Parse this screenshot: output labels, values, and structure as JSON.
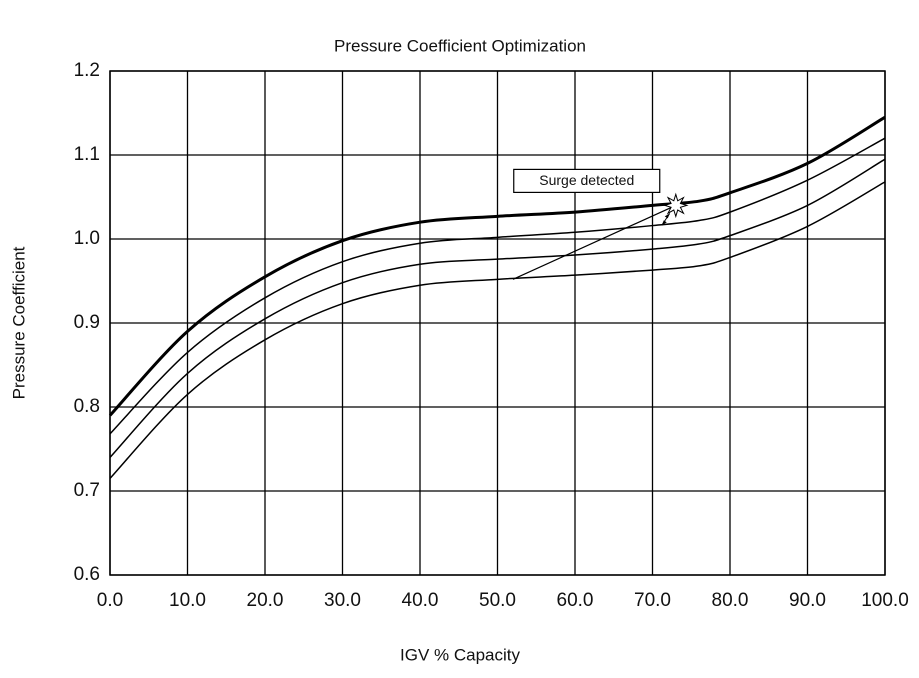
{
  "chart_data": {
    "type": "line",
    "title": "Pressure Coefficient Optimization",
    "xlabel": "IGV % Capacity",
    "ylabel": "Pressure Coefficient",
    "xlim": [
      0,
      100
    ],
    "ylim": [
      0.6,
      1.2
    ],
    "xticks": [
      {
        "value": 0,
        "label": "0.0"
      },
      {
        "value": 10,
        "label": "10.0"
      },
      {
        "value": 20,
        "label": "20.0"
      },
      {
        "value": 30,
        "label": "30.0"
      },
      {
        "value": 40,
        "label": "40.0"
      },
      {
        "value": 50,
        "label": "50.0"
      },
      {
        "value": 60,
        "label": "60.0"
      },
      {
        "value": 70,
        "label": "70.0"
      },
      {
        "value": 80,
        "label": "80.0"
      },
      {
        "value": 90,
        "label": "90.0"
      },
      {
        "value": 100,
        "label": "100.0"
      }
    ],
    "yticks": [
      0.6,
      0.7,
      0.8,
      0.9,
      {
        "value": 1,
        "label": "1.0"
      },
      1.1,
      1.2
    ],
    "grid": true,
    "series": [
      {
        "color": "#000000",
        "line_width": 3,
        "x": [
          0,
          10,
          20,
          30,
          40,
          50,
          60,
          70,
          76,
          80,
          90,
          100
        ],
        "values": [
          0.79,
          0.89,
          0.955,
          0.998,
          1.02,
          1.027,
          1.032,
          1.04,
          1.045,
          1.055,
          1.09,
          1.145
        ]
      },
      {
        "color": "#000000",
        "line_width": 1.5,
        "x": [
          0,
          10,
          20,
          30,
          40,
          50,
          60,
          70,
          76,
          80,
          90,
          100
        ],
        "values": [
          0.768,
          0.865,
          0.93,
          0.973,
          0.995,
          1.002,
          1.008,
          1.016,
          1.022,
          1.032,
          1.07,
          1.12
        ]
      },
      {
        "color": "#000000",
        "line_width": 1.5,
        "x": [
          0,
          10,
          20,
          30,
          40,
          50,
          60,
          70,
          76,
          80,
          90,
          100
        ],
        "values": [
          0.74,
          0.84,
          0.905,
          0.948,
          0.97,
          0.976,
          0.981,
          0.988,
          0.994,
          1.004,
          1.04,
          1.095
        ]
      },
      {
        "color": "#000000",
        "line_width": 1.5,
        "x": [
          0,
          10,
          20,
          30,
          40,
          50,
          60,
          70,
          76,
          80,
          90,
          100
        ],
        "values": [
          0.715,
          0.815,
          0.88,
          0.923,
          0.945,
          0.952,
          0.957,
          0.963,
          0.968,
          0.978,
          1.015,
          1.068
        ]
      },
      {
        "color": "#000000",
        "line_width": 1.2,
        "x": [
          52,
          73
        ],
        "values": [
          0.952,
          1.04
        ]
      }
    ],
    "annotation": {
      "text": "Surge detected",
      "x": 73,
      "y": 1.04
    }
  }
}
